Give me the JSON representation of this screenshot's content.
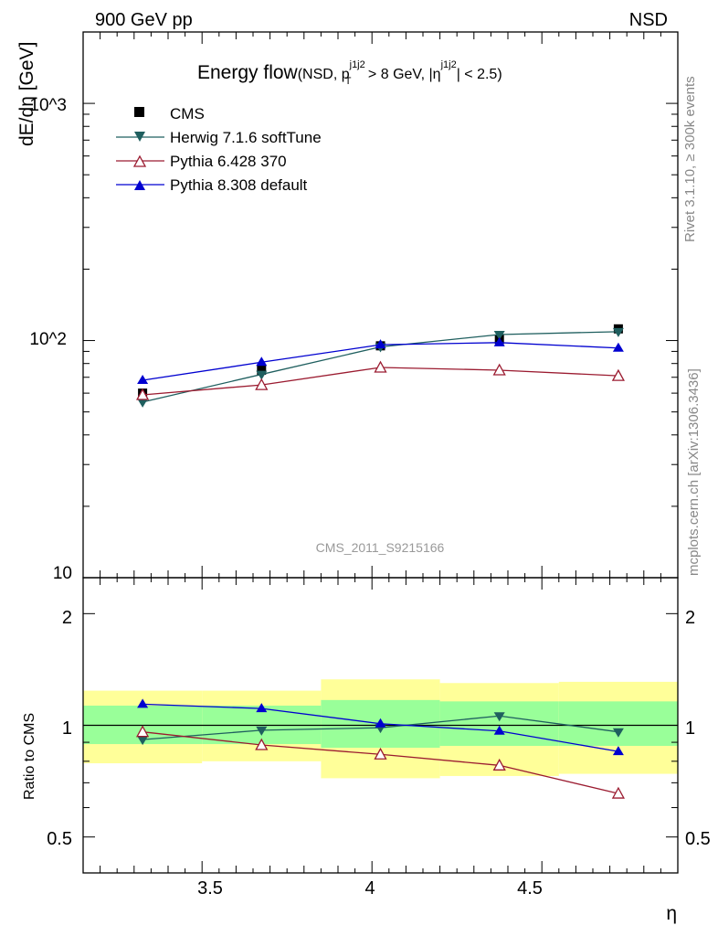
{
  "header": {
    "left": "900 GeV pp",
    "right": "NSD"
  },
  "side": {
    "rivet": "Rivet 3.1.10, ≥ 300k events",
    "mcplots": "mcplots.cern.ch [arXiv:1306.3436]"
  },
  "watermark": "CMS_2011_S9215166",
  "title": {
    "main": "Energy flow",
    "paren_open": "(NSD, p",
    "pt_sup": "j1j2",
    "pt_sub": "T",
    "mid": " > 8 GeV, |η",
    "eta_sup": "j1j2",
    "close": "| < 2.5)"
  },
  "colors": {
    "cms": "#000000",
    "herwig": "#1f5f5f",
    "pythia6": "#9b1b30",
    "pythia8": "#0000d0",
    "band_inner": "#99ff99",
    "band_outer": "#ffff99"
  },
  "chart_data": {
    "type": "line",
    "ylabel": "dE/dη [GeV]",
    "ratio_ylabel": "Ratio to CMS",
    "xlabel": "η",
    "xlim": [
      3.15,
      4.9
    ],
    "ylim": [
      10,
      2000
    ],
    "y_scale": "log",
    "ratio_ylim": [
      0.4,
      2.5
    ],
    "ratio_scale": "log",
    "legend_position": "top-left",
    "x_ticks": [
      "3.5",
      "4",
      "4.5"
    ],
    "y_ticks": [
      "10",
      "10^2",
      "10^3"
    ],
    "ratio_ticks": [
      "0.5",
      "1",
      "2"
    ],
    "bins": [
      [
        3.15,
        3.5
      ],
      [
        3.5,
        3.85
      ],
      [
        3.85,
        4.2
      ],
      [
        4.2,
        4.55
      ],
      [
        4.55,
        4.9
      ]
    ],
    "band_inner": [
      [
        0.89,
        1.13
      ],
      [
        0.89,
        1.13
      ],
      [
        0.87,
        1.17
      ],
      [
        0.88,
        1.16
      ],
      [
        0.88,
        1.16
      ]
    ],
    "band_outer": [
      [
        0.79,
        1.24
      ],
      [
        0.8,
        1.24
      ],
      [
        0.72,
        1.33
      ],
      [
        0.73,
        1.3
      ],
      [
        0.74,
        1.31
      ]
    ],
    "series": [
      {
        "name": "CMS",
        "marker": "square",
        "color": "#000000",
        "x": [
          3.325,
          3.675,
          4.025,
          4.375,
          4.725
        ],
        "y": [
          60,
          75,
          95,
          101,
          112
        ]
      },
      {
        "name": "Herwig 7.1.6 softTune",
        "marker": "triangle-down",
        "color": "#1f5f5f",
        "x": [
          3.325,
          3.675,
          4.025,
          4.375,
          4.725
        ],
        "y": [
          55,
          72,
          94,
          106,
          109
        ],
        "ratio": [
          0.915,
          0.97,
          0.985,
          1.06,
          0.96
        ]
      },
      {
        "name": "Pythia 6.428 370",
        "marker": "triangle-open",
        "color": "#9b1b30",
        "x": [
          3.325,
          3.675,
          4.025,
          4.375,
          4.725
        ],
        "y": [
          59,
          65,
          77,
          75,
          71
        ],
        "ratio": [
          0.96,
          0.885,
          0.835,
          0.78,
          0.655
        ]
      },
      {
        "name": "Pythia 8.308 default",
        "marker": "triangle-up",
        "color": "#0000d0",
        "x": [
          3.325,
          3.675,
          4.025,
          4.375,
          4.725
        ],
        "y": [
          68,
          81,
          96,
          98,
          93
        ],
        "ratio": [
          1.14,
          1.11,
          1.01,
          0.965,
          0.85
        ]
      }
    ]
  }
}
